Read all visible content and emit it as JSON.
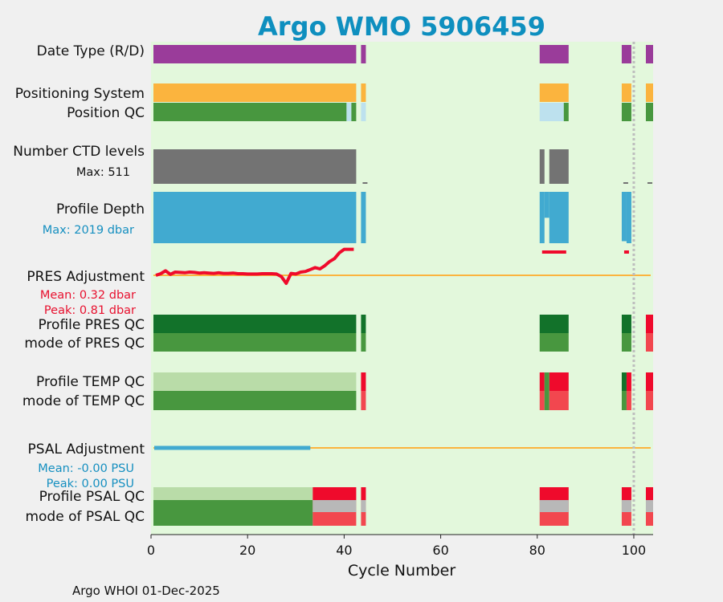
{
  "chart_data": {
    "type": "bar",
    "title": "Argo WMO 5906459",
    "xlabel": "Cycle Number",
    "xlim": [
      0,
      104
    ],
    "xticks": [
      0,
      20,
      40,
      60,
      80,
      100
    ],
    "marker_cycle": 100,
    "footer": "Argo WHOI 01-Dec-2025",
    "colors": {
      "title": "#0e8fbf",
      "background": "#e3f8dc",
      "data_type": "#9a3c9a",
      "positioning": "#fbb43e",
      "qc_good": "#48973f",
      "qc_good_dark": "#12722a",
      "qc_light_good": "#b9dca8",
      "qc_bad": "#ef0a2c",
      "qc_bad_mode": "#f2474f",
      "qc_missing": "#bde1ee",
      "gray": "#b8b8b8",
      "ctd": "#737373",
      "profile": "#41aad0",
      "pres_line": "#ef0a2c",
      "psal_line": "#41aad0",
      "zero_line": "#fbb43e",
      "note_blue": "#158fc0",
      "note_red": "#e8102e"
    },
    "labels": {
      "data_type": "Date Type (R/D)",
      "positioning": "Positioning System",
      "position_qc": "Position QC",
      "ctd_levels": "Number CTD levels",
      "ctd_max": "Max: 511",
      "profile_depth": "Profile Depth",
      "depth_max": "Max: 2019 dbar",
      "pres_adj": "PRES Adjustment",
      "pres_mean": "Mean: 0.32 dbar",
      "pres_peak": "Peak: 0.81 dbar",
      "profile_pres_qc": "Profile PRES QC",
      "mode_pres_qc": "mode of PRES QC",
      "profile_temp_qc": "Profile TEMP QC",
      "mode_temp_qc": "mode of TEMP QC",
      "psal_adj": "PSAL Adjustment",
      "psal_mean": "Mean: -0.00 PSU",
      "psal_peak": "Peak: 0.00 PSU",
      "profile_psal_qc": "Profile PSAL QC",
      "mode_psal_qc": "mode of PSAL QC"
    },
    "bands": [
      {
        "name": "data-type-bar",
        "segments": [
          [
            0.5,
            42.5,
            "data_type"
          ],
          [
            43.5,
            44.5,
            "data_type"
          ],
          [
            80.5,
            86.5,
            "data_type"
          ],
          [
            97.5,
            99.5,
            "data_type"
          ],
          [
            102.5,
            104,
            "data_type"
          ]
        ]
      },
      {
        "name": "positioning-system-bar",
        "segments": [
          [
            0.5,
            42.5,
            "positioning"
          ],
          [
            43.5,
            44.5,
            "positioning"
          ],
          [
            80.5,
            86.5,
            "positioning"
          ],
          [
            97.5,
            99.5,
            "positioning"
          ],
          [
            102.5,
            104,
            "positioning"
          ]
        ]
      },
      {
        "name": "position-qc-bar",
        "segments": [
          [
            0.5,
            40.5,
            "qc_good"
          ],
          [
            40.5,
            41.5,
            "qc_missing"
          ],
          [
            41.5,
            42.5,
            "qc_good"
          ],
          [
            43.5,
            44.5,
            "qc_missing"
          ],
          [
            80.5,
            85.5,
            "qc_missing"
          ],
          [
            85.5,
            86.5,
            "qc_good"
          ],
          [
            97.5,
            99.5,
            "qc_good"
          ],
          [
            102.5,
            104,
            "qc_good"
          ]
        ]
      },
      {
        "name": "ctd-levels-bar",
        "segments": [
          [
            0.5,
            42.5,
            "ctd"
          ],
          [
            80.5,
            81.5,
            "ctd"
          ],
          [
            82.5,
            86.5,
            "ctd"
          ]
        ]
      },
      {
        "name": "profile-depth-bar",
        "segments": [
          [
            0.5,
            42.5,
            "profile"
          ],
          [
            43.5,
            44.5,
            "profile"
          ],
          [
            80.5,
            81.5,
            "profile"
          ],
          [
            81.5,
            82.5,
            "profile"
          ],
          [
            82.5,
            86.5,
            "profile"
          ],
          [
            97.5,
            98.5,
            "profile"
          ],
          [
            98.5,
            99.5,
            "profile"
          ]
        ]
      },
      {
        "name": "profile-pres-qc-bar",
        "segments": [
          [
            0.5,
            42.5,
            "qc_good_dark"
          ],
          [
            43.5,
            44.5,
            "qc_good_dark"
          ],
          [
            80.5,
            86.5,
            "qc_good_dark"
          ],
          [
            97.5,
            99.5,
            "qc_good_dark"
          ],
          [
            102.5,
            104,
            "qc_bad"
          ]
        ]
      },
      {
        "name": "mode-pres-qc-bar",
        "segments": [
          [
            0.5,
            42.5,
            "qc_good"
          ],
          [
            43.5,
            44.5,
            "qc_good"
          ],
          [
            80.5,
            86.5,
            "qc_good"
          ],
          [
            97.5,
            99.5,
            "qc_good"
          ],
          [
            102.5,
            104,
            "qc_bad_mode"
          ]
        ]
      },
      {
        "name": "profile-temp-qc-bar",
        "segments": [
          [
            0.5,
            42.5,
            "qc_light_good"
          ],
          [
            43.5,
            44.5,
            "qc_bad"
          ],
          [
            80.5,
            81.5,
            "qc_bad"
          ],
          [
            81.5,
            82.5,
            "qc_good"
          ],
          [
            82.5,
            86.5,
            "qc_bad"
          ],
          [
            97.5,
            98.5,
            "qc_good_dark"
          ],
          [
            98.5,
            99.5,
            "qc_bad"
          ],
          [
            102.5,
            104,
            "qc_bad"
          ]
        ]
      },
      {
        "name": "mode-temp-qc-bar",
        "segments": [
          [
            0.5,
            42.5,
            "qc_good"
          ],
          [
            43.5,
            44.5,
            "qc_bad_mode"
          ],
          [
            80.5,
            81.5,
            "qc_bad_mode"
          ],
          [
            81.5,
            82.5,
            "qc_good"
          ],
          [
            82.5,
            86.5,
            "qc_bad_mode"
          ],
          [
            97.5,
            98.5,
            "qc_good"
          ],
          [
            98.5,
            99.5,
            "qc_bad_mode"
          ],
          [
            102.5,
            104,
            "qc_bad_mode"
          ]
        ]
      },
      {
        "name": "profile-psal-qc-bar",
        "segments": [
          [
            0.5,
            33.5,
            "qc_light_good"
          ],
          [
            33.5,
            42.5,
            "qc_bad"
          ],
          [
            43.5,
            44.5,
            "qc_bad"
          ],
          [
            80.5,
            86.5,
            "qc_bad"
          ],
          [
            97.5,
            99.5,
            "qc_bad"
          ],
          [
            102.5,
            104,
            "qc_bad"
          ]
        ]
      },
      {
        "name": "mode-psal-qc-bar",
        "segments": [
          [
            0.5,
            33.5,
            "qc_good"
          ],
          [
            33.5,
            42.5,
            "qc_bad_mode"
          ],
          [
            43.5,
            44.5,
            "qc_bad_mode"
          ],
          [
            80.5,
            86.5,
            "qc_bad_mode"
          ],
          [
            97.5,
            99.5,
            "qc_bad_mode"
          ],
          [
            102.5,
            104,
            "qc_bad_mode"
          ]
        ]
      }
    ],
    "ctd_levels": {
      "max": 511,
      "cycles": [
        [
          0.5,
          42.5,
          511
        ],
        [
          43.5,
          44.5,
          8
        ],
        [
          80.5,
          81.5,
          511
        ],
        [
          82.5,
          86.5,
          511
        ],
        [
          97.5,
          99.5,
          8
        ],
        [
          102.5,
          104,
          8
        ]
      ]
    },
    "profile_depth": {
      "max": 2019,
      "cycles": [
        [
          0.5,
          42.5,
          2019
        ],
        [
          43.5,
          44.5,
          2019
        ],
        [
          80.5,
          81.5,
          2019
        ],
        [
          81.5,
          82.5,
          1020
        ],
        [
          82.5,
          86.5,
          2019
        ],
        [
          97.5,
          98.5,
          1940
        ],
        [
          98.5,
          99.5,
          2019
        ]
      ]
    },
    "pres_adjustment": {
      "cycles": [
        1,
        2,
        3,
        4,
        5,
        6,
        7,
        8,
        9,
        10,
        11,
        12,
        13,
        14,
        15,
        16,
        17,
        18,
        19,
        20,
        21,
        22,
        23,
        24,
        25,
        26,
        27,
        28,
        29,
        30,
        31,
        32,
        33,
        34,
        35,
        36,
        37,
        38,
        39,
        40,
        41,
        42
      ],
      "values": [
        0.0,
        0.05,
        0.14,
        0.03,
        0.1,
        0.09,
        0.08,
        0.1,
        0.09,
        0.07,
        0.08,
        0.07,
        0.06,
        0.08,
        0.06,
        0.06,
        0.07,
        0.05,
        0.05,
        0.04,
        0.04,
        0.04,
        0.05,
        0.05,
        0.05,
        0.04,
        -0.04,
        -0.25,
        0.06,
        0.04,
        0.1,
        0.12,
        0.18,
        0.24,
        0.2,
        0.3,
        0.43,
        0.52,
        0.7,
        0.81,
        0.81,
        0.81
      ],
      "extra_segments": [
        [
          81,
          86,
          0.68
        ],
        [
          98,
          99,
          0.68
        ]
      ],
      "ylim": [
        -0.4,
        1.0
      ]
    },
    "psal_adjustment": {
      "cycles": [
        1,
        33
      ],
      "values": [
        0.0,
        0.0
      ],
      "ylim": [
        -1,
        1
      ]
    }
  }
}
